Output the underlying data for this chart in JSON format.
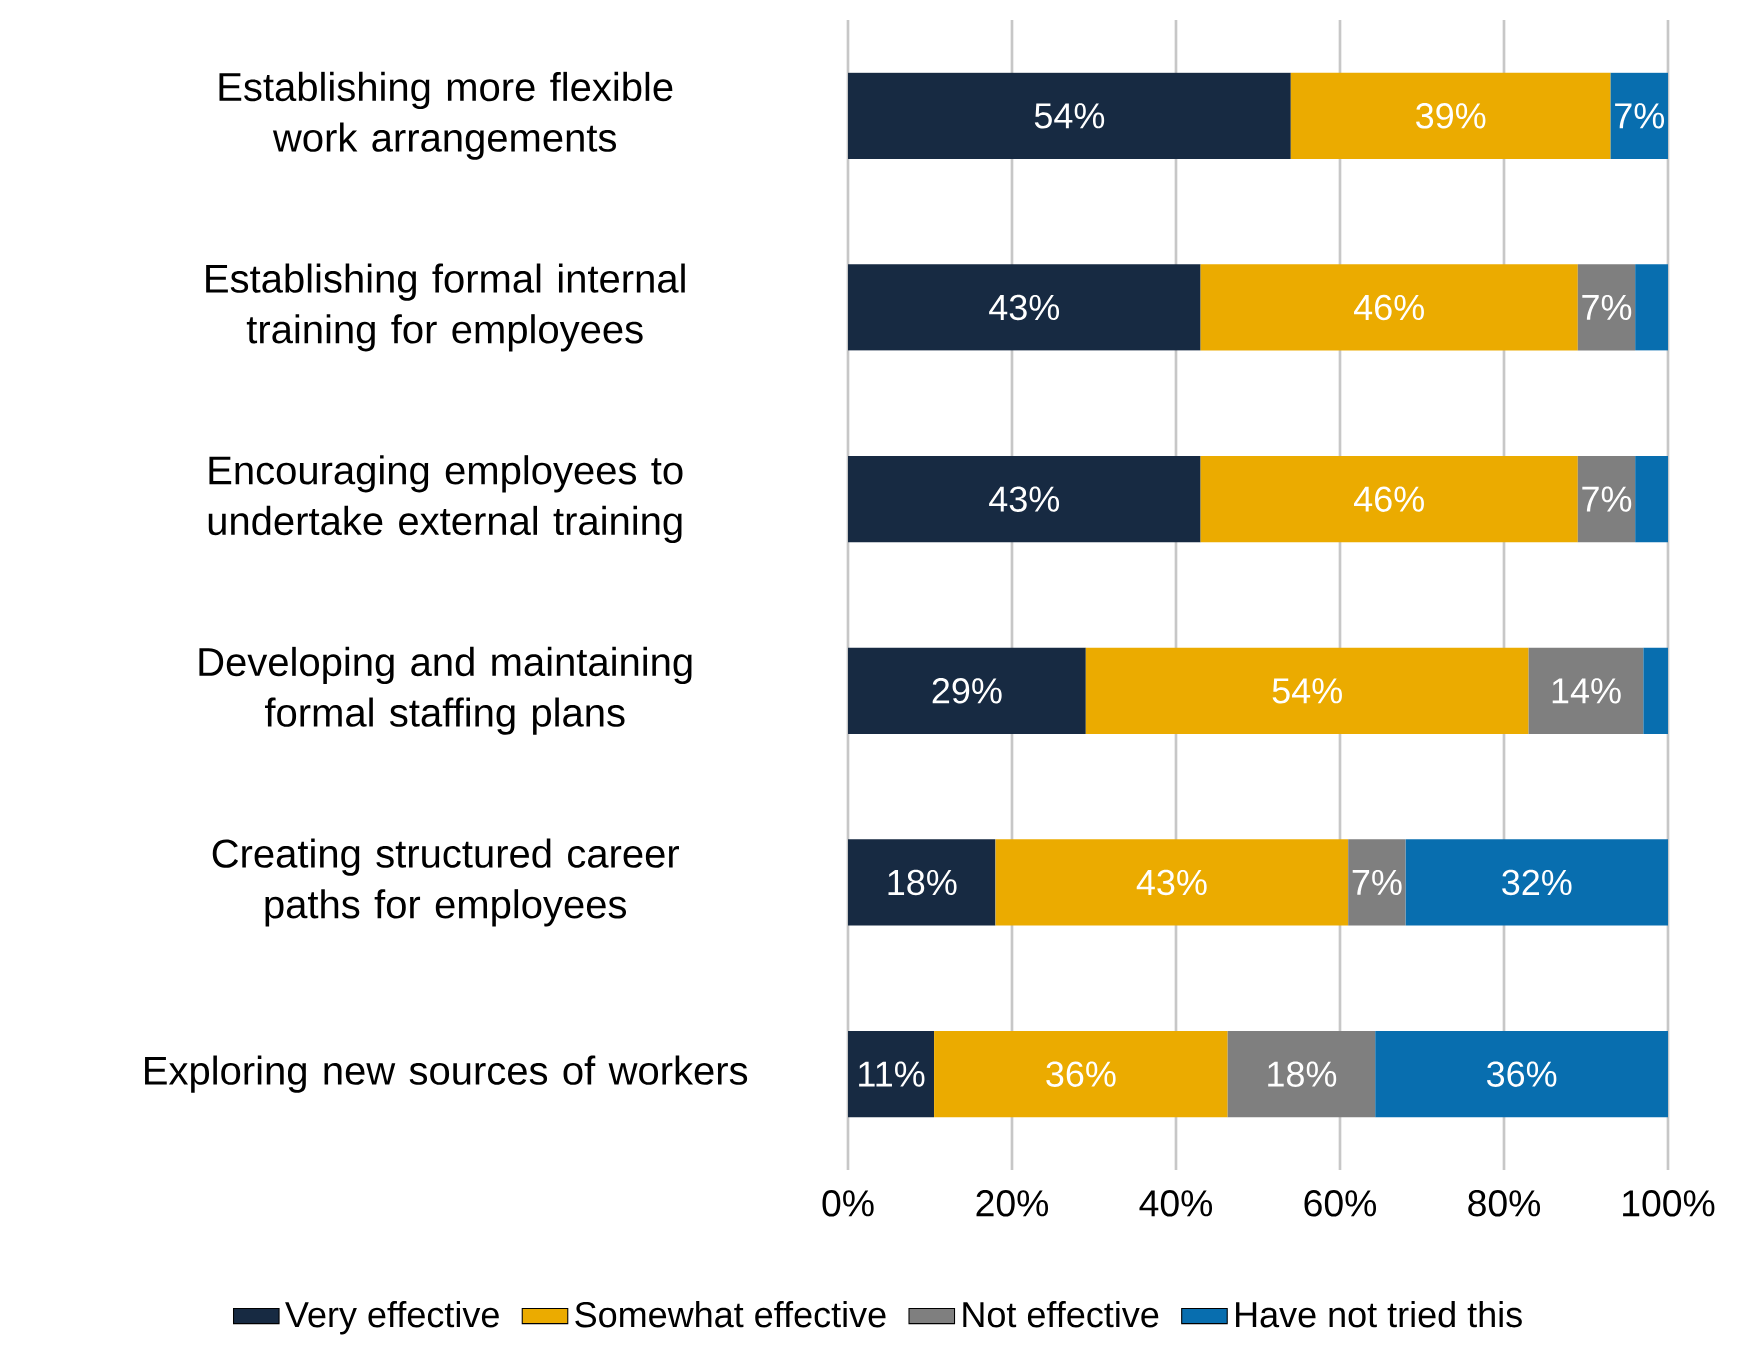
{
  "chart_data": {
    "type": "bar",
    "orientation": "horizontal",
    "stacked": true,
    "categories": [
      "Establishing more flexible work arrangements",
      "Establishing formal internal training for employees",
      "Encouraging employees to undertake external training",
      "Developing and maintaining formal staffing plans",
      "Creating structured career paths for employees",
      "Exploring new sources of workers"
    ],
    "series": [
      {
        "name": "Very effective",
        "color": "#172a42",
        "values": [
          54,
          43,
          43,
          29,
          18,
          10.5
        ],
        "value_labels": [
          "54%",
          "43%",
          "43%",
          "29%",
          "18%",
          "11%"
        ]
      },
      {
        "name": "Somewhat effective",
        "color": "#ebab00",
        "values": [
          39,
          46,
          46,
          54,
          43,
          35.8
        ],
        "value_labels": [
          "39%",
          "46%",
          "46%",
          "54%",
          "43%",
          "36%"
        ]
      },
      {
        "name": "Not effective",
        "color": "#7f7f7f",
        "values": [
          null,
          7,
          7,
          14,
          7,
          18
        ],
        "value_labels": [
          null,
          "7%",
          "7%",
          "14%",
          "7%",
          "18%"
        ]
      },
      {
        "name": "Have not tried this",
        "color": "#086eaf",
        "values": [
          7,
          4,
          4,
          3,
          32,
          35.7
        ],
        "value_labels": [
          "7%",
          null,
          null,
          null,
          "32%",
          "36%"
        ]
      }
    ],
    "xlim": [
      0,
      100
    ],
    "xticks": [
      {
        "value": 0,
        "label": "0%"
      },
      {
        "value": 20,
        "label": "20%"
      },
      {
        "value": 40,
        "label": "40%"
      },
      {
        "value": 60,
        "label": "60%"
      },
      {
        "value": 80,
        "label": "80%"
      },
      {
        "value": 100,
        "label": "100%"
      }
    ],
    "grid": "x",
    "legend": "bottom"
  }
}
